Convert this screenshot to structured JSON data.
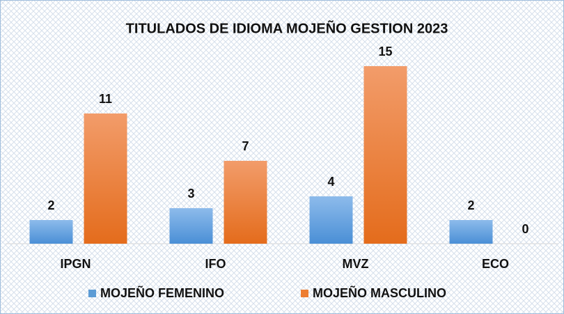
{
  "chart_data": {
    "type": "bar",
    "title": "TITULADOS DE IDIOMA MOJEÑO GESTION 2023",
    "categories": [
      "IPGN",
      "IFO",
      "MVZ",
      "ECO"
    ],
    "series": [
      {
        "name": "MOJEÑO FEMENINO",
        "color": "#5b9bd5",
        "values": [
          2,
          3,
          4,
          2
        ]
      },
      {
        "name": "MOJEÑO MASCULINO",
        "color": "#ed7d31",
        "values": [
          11,
          7,
          15,
          0
        ]
      }
    ]
  }
}
